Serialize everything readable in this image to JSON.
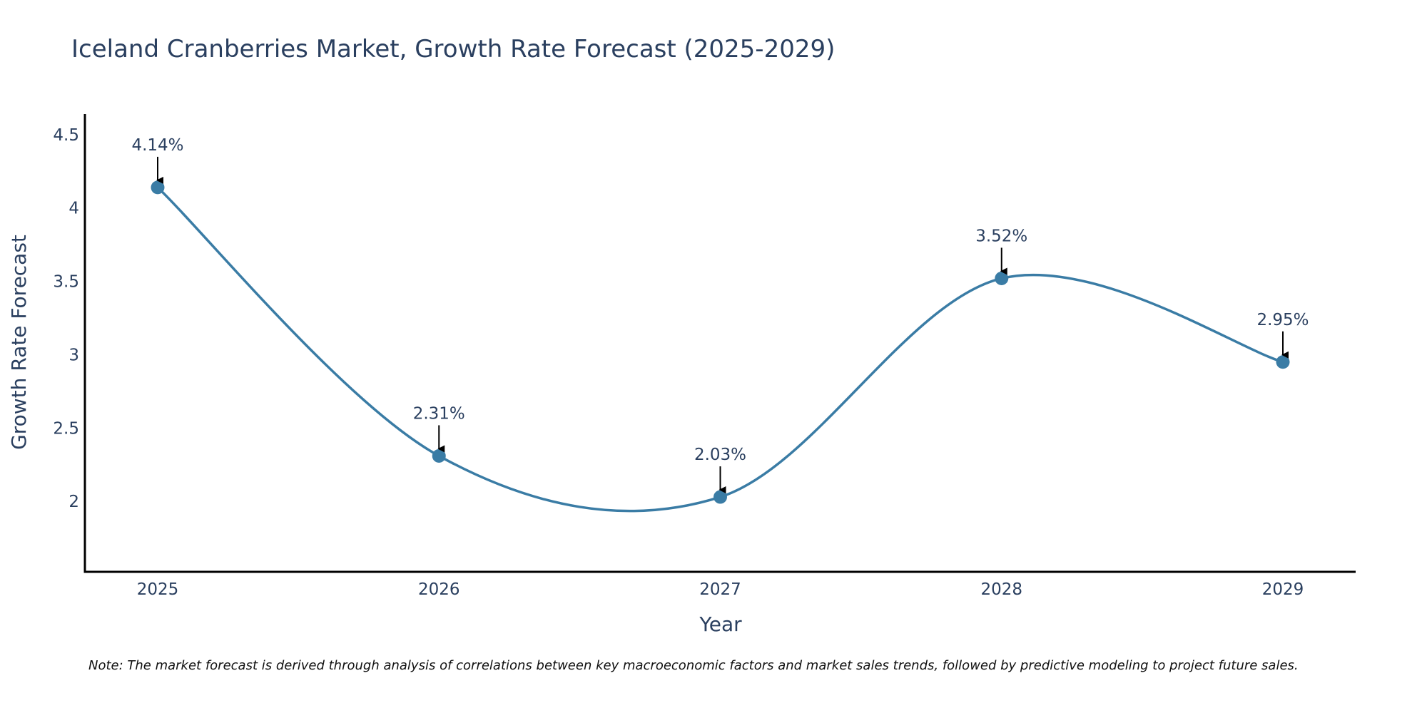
{
  "chart_data": {
    "type": "line",
    "title": "Iceland Cranberries Market, Growth Rate Forecast (2025-2029)",
    "xlabel": "Year",
    "ylabel": "Growth Rate Forecast",
    "categories": [
      "2025",
      "2026",
      "2027",
      "2028",
      "2029"
    ],
    "values": [
      4.14,
      2.31,
      2.03,
      3.52,
      2.95
    ],
    "data_labels": [
      "4.14%",
      "2.31%",
      "2.03%",
      "3.52%",
      "2.95%"
    ],
    "ylim": [
      1.52,
      4.64
    ],
    "yticks": [
      2,
      2.5,
      3,
      3.5,
      4,
      4.5
    ],
    "ytick_labels": [
      "2",
      "2.5",
      "3",
      "3.5",
      "4",
      "4.5"
    ],
    "line_shape": "spline",
    "grid": false,
    "legend": "none",
    "colors": {
      "line": "#3a7ca5",
      "marker": "#3a7ca5",
      "axis": "#000000",
      "text": "#2a3f5f",
      "arrow": "#000000"
    },
    "note": "Note: The market forecast is derived through analysis of correlations between key macroeconomic factors and market sales trends, followed by predictive modeling to project future sales."
  }
}
